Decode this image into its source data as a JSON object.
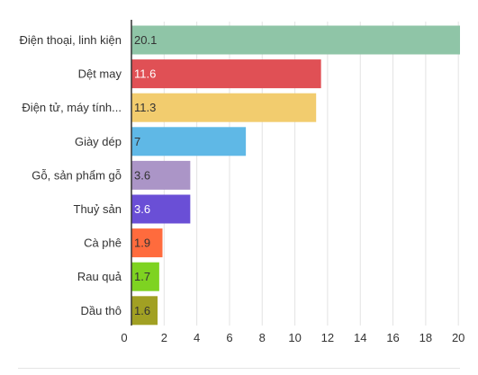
{
  "chart_data": {
    "type": "bar",
    "orientation": "horizontal",
    "categories": [
      "Điện thoại, linh kiện",
      "Dệt may",
      "Điện tử, máy tính...",
      "Giày dép",
      "Gỗ, sản phẩm gỗ",
      "Thuỷ sản",
      "Cà phê",
      "Rau quả",
      "Dầu thô"
    ],
    "values": [
      20.1,
      11.6,
      11.3,
      7,
      3.6,
      3.6,
      1.9,
      1.7,
      1.6
    ],
    "value_labels": [
      "20.1",
      "11.6",
      "11.3",
      "7",
      "3.6",
      "3.6",
      "1.9",
      "1.7",
      "1.6"
    ],
    "colors": [
      "#8fc5a7",
      "#e05055",
      "#f2cc6e",
      "#5fb8e6",
      "#ab95c7",
      "#6a4fd6",
      "#ff6b3d",
      "#7ed321",
      "#a1a023"
    ],
    "value_label_colors": [
      "#333333",
      "#ffffff",
      "#333333",
      "#333333",
      "#333333",
      "#ffffff",
      "#333333",
      "#333333",
      "#333333"
    ],
    "xlim": [
      0,
      20.1
    ],
    "xticks": [
      0,
      2,
      4,
      6,
      8,
      10,
      12,
      14,
      16,
      18,
      20
    ],
    "grid": true,
    "title": "",
    "xlabel": "",
    "ylabel": ""
  }
}
